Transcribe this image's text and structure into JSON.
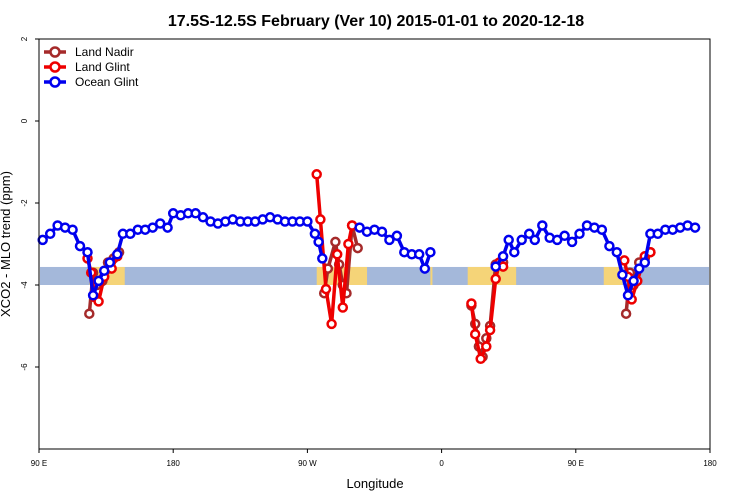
{
  "chart_data": {
    "type": "line",
    "title": "17.5S-12.5S February (Ver 10)   2015-01-01 to 2020-12-18",
    "xlabel": "Longitude",
    "ylabel": "XCO2 - MLO trend (ppm)",
    "xlim": [
      90,
      450
    ],
    "ylim": [
      -8,
      2
    ],
    "x_ticks": [
      {
        "value": 90,
        "label": "90 E"
      },
      {
        "value": 162,
        "label": "180"
      },
      {
        "value": 234,
        "label": "90 W"
      },
      {
        "value": 306,
        "label": "0"
      },
      {
        "value": 378,
        "label": "90 E"
      },
      {
        "value": 450,
        "label": "180"
      }
    ],
    "y_ticks": [
      {
        "value": -6,
        "label": "-6"
      },
      {
        "value": -4,
        "label": "-4"
      },
      {
        "value": -2,
        "label": "-2"
      },
      {
        "value": 0,
        "label": "0"
      },
      {
        "value": 2,
        "label": "2"
      }
    ],
    "grid": false,
    "legend_position": "top-left",
    "land_mask": {
      "y_center": -3.78,
      "thickness": 0.22,
      "ocean_color": "#a4b8da",
      "land_color": "#f5d478",
      "land_ranges": [
        [
          117,
          136
        ],
        [
          239,
          266
        ],
        [
          300,
          300
        ],
        [
          320,
          346
        ],
        [
          393,
          403
        ]
      ]
    },
    "series": [
      {
        "name": "Land Nadir",
        "color": "#a52a2a",
        "points": [
          [
            117,
            -4.7
          ],
          [
            119,
            -3.7
          ],
          [
            121,
            -4.0
          ],
          [
            124,
            -3.9
          ],
          [
            127,
            -3.45
          ],
          [
            130,
            -3.35
          ],
          [
            133,
            -3.2
          ],
          [
            243,
            -4.2
          ],
          [
            245,
            -3.6
          ],
          [
            249,
            -2.95
          ],
          [
            251,
            -3.5
          ],
          [
            253,
            -4.0
          ],
          [
            255,
            -4.2
          ],
          [
            258,
            -2.55
          ],
          [
            261,
            -3.1
          ],
          [
            322,
            -4.5
          ],
          [
            324,
            -4.95
          ],
          [
            326,
            -5.5
          ],
          [
            328,
            -5.75
          ],
          [
            330,
            -5.3
          ],
          [
            332,
            -5.0
          ],
          [
            335,
            -3.5
          ],
          [
            337,
            -3.45
          ],
          [
            339,
            -3.45
          ],
          [
            405,
            -4.7
          ],
          [
            407,
            -3.7
          ],
          [
            409,
            -4.0
          ],
          [
            412,
            -3.45
          ],
          [
            415,
            -3.35
          ],
          [
            418,
            -3.2
          ]
        ]
      },
      {
        "name": "Land Glint",
        "color": "#ee0000",
        "points": [
          [
            116,
            -3.35
          ],
          [
            118,
            -3.7
          ],
          [
            120,
            -4.3
          ],
          [
            122,
            -4.4
          ],
          [
            125,
            -3.8
          ],
          [
            129,
            -3.6
          ],
          [
            132,
            -3.3
          ],
          [
            239,
            -1.3
          ],
          [
            241,
            -2.4
          ],
          [
            244,
            -4.1
          ],
          [
            247,
            -4.95
          ],
          [
            250,
            -3.25
          ],
          [
            253,
            -4.55
          ],
          [
            256,
            -3.0
          ],
          [
            258,
            -2.55
          ],
          [
            322,
            -4.45
          ],
          [
            324,
            -5.2
          ],
          [
            327,
            -5.8
          ],
          [
            330,
            -5.5
          ],
          [
            332,
            -5.1
          ],
          [
            335,
            -3.85
          ],
          [
            337,
            -3.45
          ],
          [
            339,
            -3.55
          ],
          [
            404,
            -3.4
          ],
          [
            406,
            -3.8
          ],
          [
            408,
            -4.35
          ],
          [
            411,
            -3.9
          ],
          [
            415,
            -3.3
          ],
          [
            418,
            -3.2
          ]
        ]
      },
      {
        "name": "Ocean Glint",
        "color": "#0000ee",
        "points": [
          [
            92,
            -2.9
          ],
          [
            96,
            -2.75
          ],
          [
            100,
            -2.55
          ],
          [
            104,
            -2.6
          ],
          [
            108,
            -2.65
          ],
          [
            112,
            -3.05
          ],
          [
            116,
            -3.2
          ],
          [
            119,
            -4.25
          ],
          [
            122,
            -3.9
          ],
          [
            125,
            -3.65
          ],
          [
            128,
            -3.45
          ],
          [
            132,
            -3.25
          ],
          [
            135,
            -2.75
          ],
          [
            139,
            -2.75
          ],
          [
            143,
            -2.65
          ],
          [
            147,
            -2.65
          ],
          [
            151,
            -2.6
          ],
          [
            155,
            -2.5
          ],
          [
            159,
            -2.6
          ],
          [
            162,
            -2.25
          ],
          [
            166,
            -2.3
          ],
          [
            170,
            -2.25
          ],
          [
            174,
            -2.25
          ],
          [
            178,
            -2.35
          ],
          [
            182,
            -2.45
          ],
          [
            186,
            -2.5
          ],
          [
            190,
            -2.45
          ],
          [
            194,
            -2.4
          ],
          [
            198,
            -2.45
          ],
          [
            202,
            -2.45
          ],
          [
            206,
            -2.45
          ],
          [
            210,
            -2.4
          ],
          [
            214,
            -2.35
          ],
          [
            218,
            -2.4
          ],
          [
            222,
            -2.45
          ],
          [
            226,
            -2.45
          ],
          [
            230,
            -2.45
          ],
          [
            234,
            -2.45
          ],
          [
            238,
            -2.75
          ],
          [
            240,
            -2.95
          ],
          [
            242,
            -3.35
          ],
          [
            262,
            -2.6
          ],
          [
            266,
            -2.7
          ],
          [
            270,
            -2.65
          ],
          [
            274,
            -2.7
          ],
          [
            278,
            -2.9
          ],
          [
            282,
            -2.8
          ],
          [
            286,
            -3.2
          ],
          [
            290,
            -3.25
          ],
          [
            294,
            -3.25
          ],
          [
            297,
            -3.6
          ],
          [
            300,
            -3.2
          ],
          [
            335,
            -3.55
          ],
          [
            339,
            -3.3
          ],
          [
            342,
            -2.9
          ],
          [
            345,
            -3.2
          ],
          [
            349,
            -2.9
          ],
          [
            353,
            -2.75
          ],
          [
            356,
            -2.9
          ],
          [
            360,
            -2.55
          ],
          [
            364,
            -2.85
          ],
          [
            368,
            -2.9
          ],
          [
            372,
            -2.8
          ],
          [
            376,
            -2.95
          ],
          [
            380,
            -2.75
          ],
          [
            384,
            -2.55
          ],
          [
            388,
            -2.6
          ],
          [
            392,
            -2.65
          ],
          [
            396,
            -3.05
          ],
          [
            400,
            -3.2
          ],
          [
            403,
            -3.75
          ],
          [
            406,
            -4.25
          ],
          [
            409,
            -3.9
          ],
          [
            412,
            -3.6
          ],
          [
            415,
            -3.45
          ],
          [
            418,
            -2.75
          ],
          [
            422,
            -2.75
          ],
          [
            426,
            -2.65
          ],
          [
            430,
            -2.65
          ],
          [
            434,
            -2.6
          ],
          [
            438,
            -2.55
          ],
          [
            442,
            -2.6
          ]
        ]
      }
    ]
  }
}
